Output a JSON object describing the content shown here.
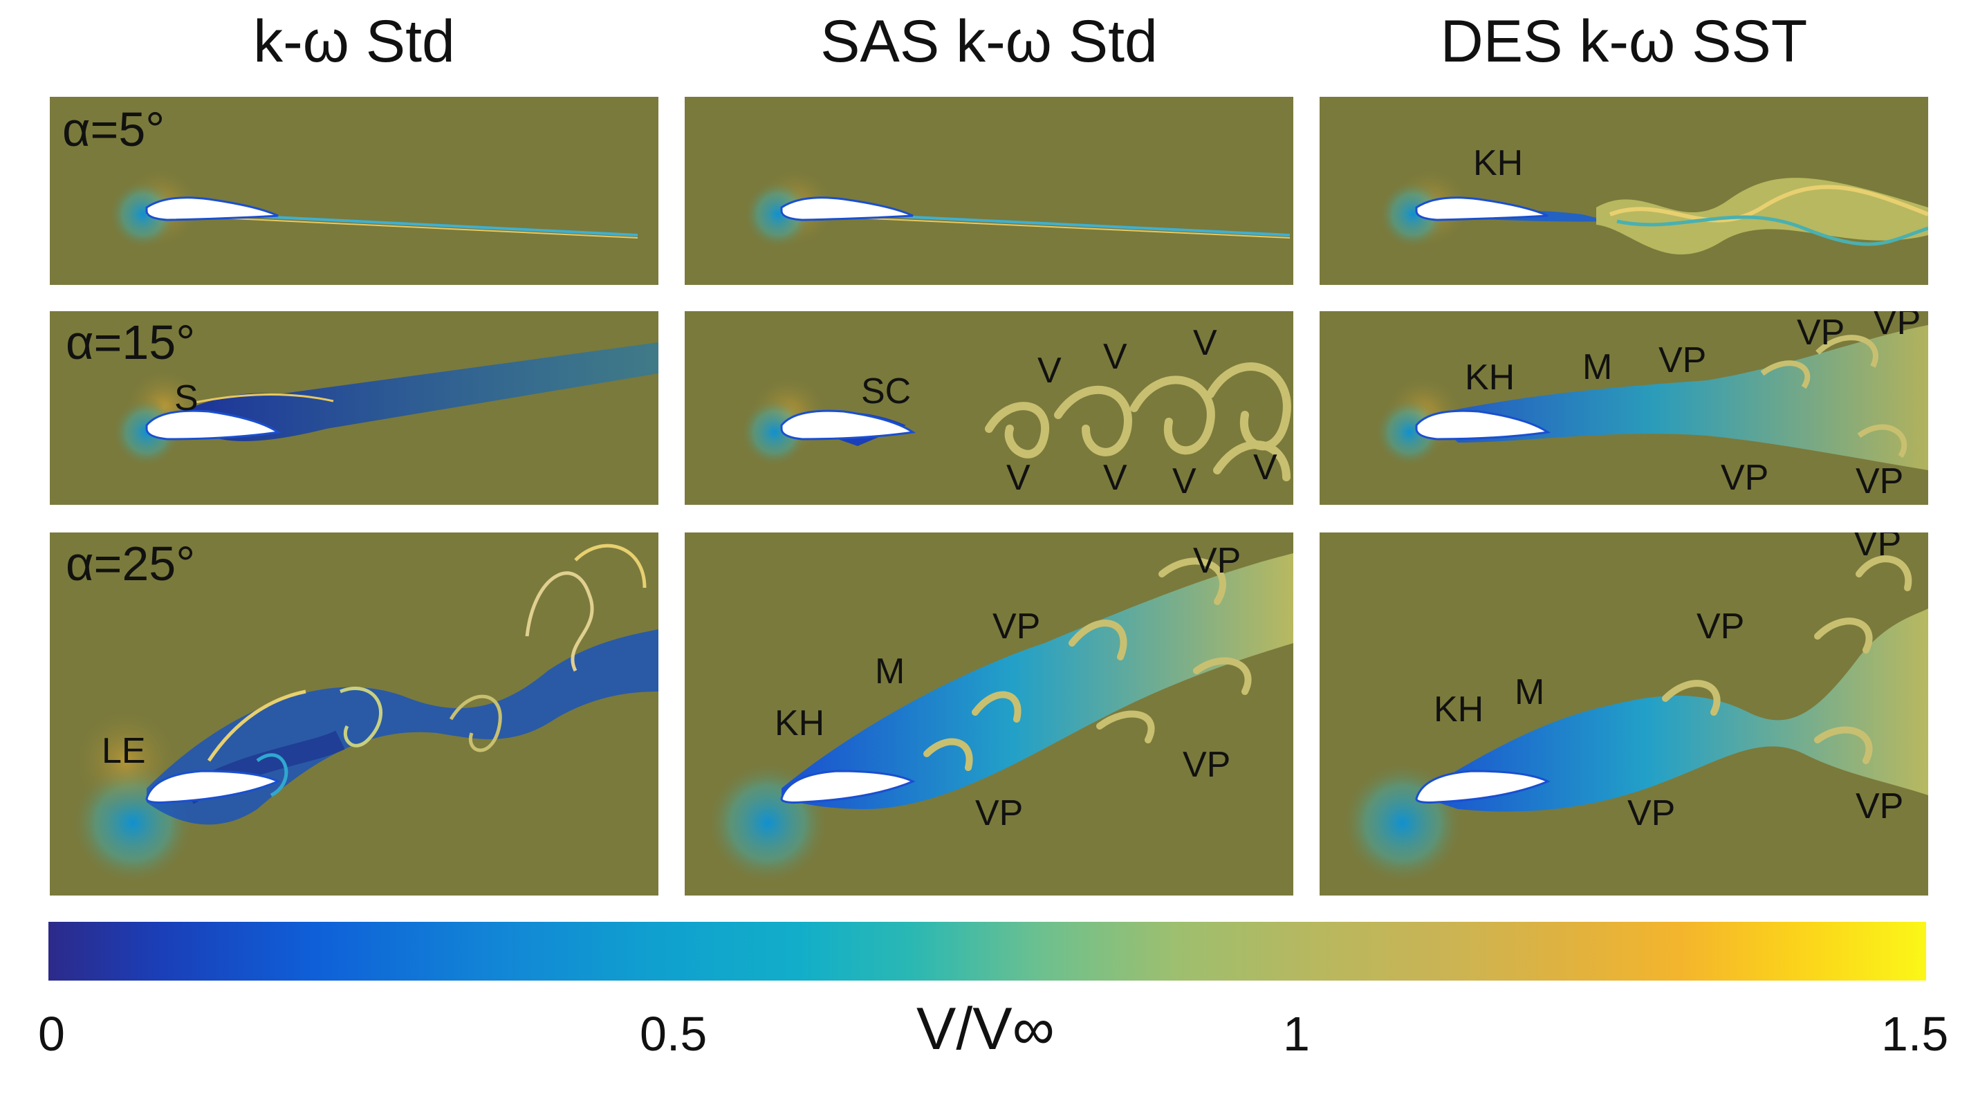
{
  "columns": [
    "k-ω Std",
    "SAS k-ω Std",
    "DES k-ω SST"
  ],
  "rows": [
    "α=5°",
    "α=15°",
    "α=25°"
  ],
  "annotations": {
    "r1c3": [
      "KH"
    ],
    "r2c1": [
      "S"
    ],
    "r2c2": [
      "SC",
      "V",
      "V",
      "V",
      "V",
      "V",
      "V",
      "V"
    ],
    "r2c3": [
      "KH",
      "M",
      "VP",
      "VP",
      "VP",
      "VP",
      "VP"
    ],
    "r3c1": [
      "LE"
    ],
    "r3c2": [
      "KH",
      "M",
      "VP",
      "VP",
      "VP",
      "VP"
    ],
    "r3c3": [
      "KH",
      "M",
      "VP",
      "VP",
      "VP",
      "VP"
    ]
  },
  "colorbar": {
    "label": "V/V∞",
    "ticks": [
      "0",
      "0.5",
      "1",
      "1.5"
    ],
    "min": 0,
    "max": 1.5,
    "colors": [
      "#2c2a8a",
      "#1086d8",
      "#12aec9",
      "#9dbf6f",
      "#e0b23f",
      "#fbf718"
    ]
  },
  "colors": {
    "background_field": "#7a7a3c",
    "airfoil": "#ffffff"
  }
}
